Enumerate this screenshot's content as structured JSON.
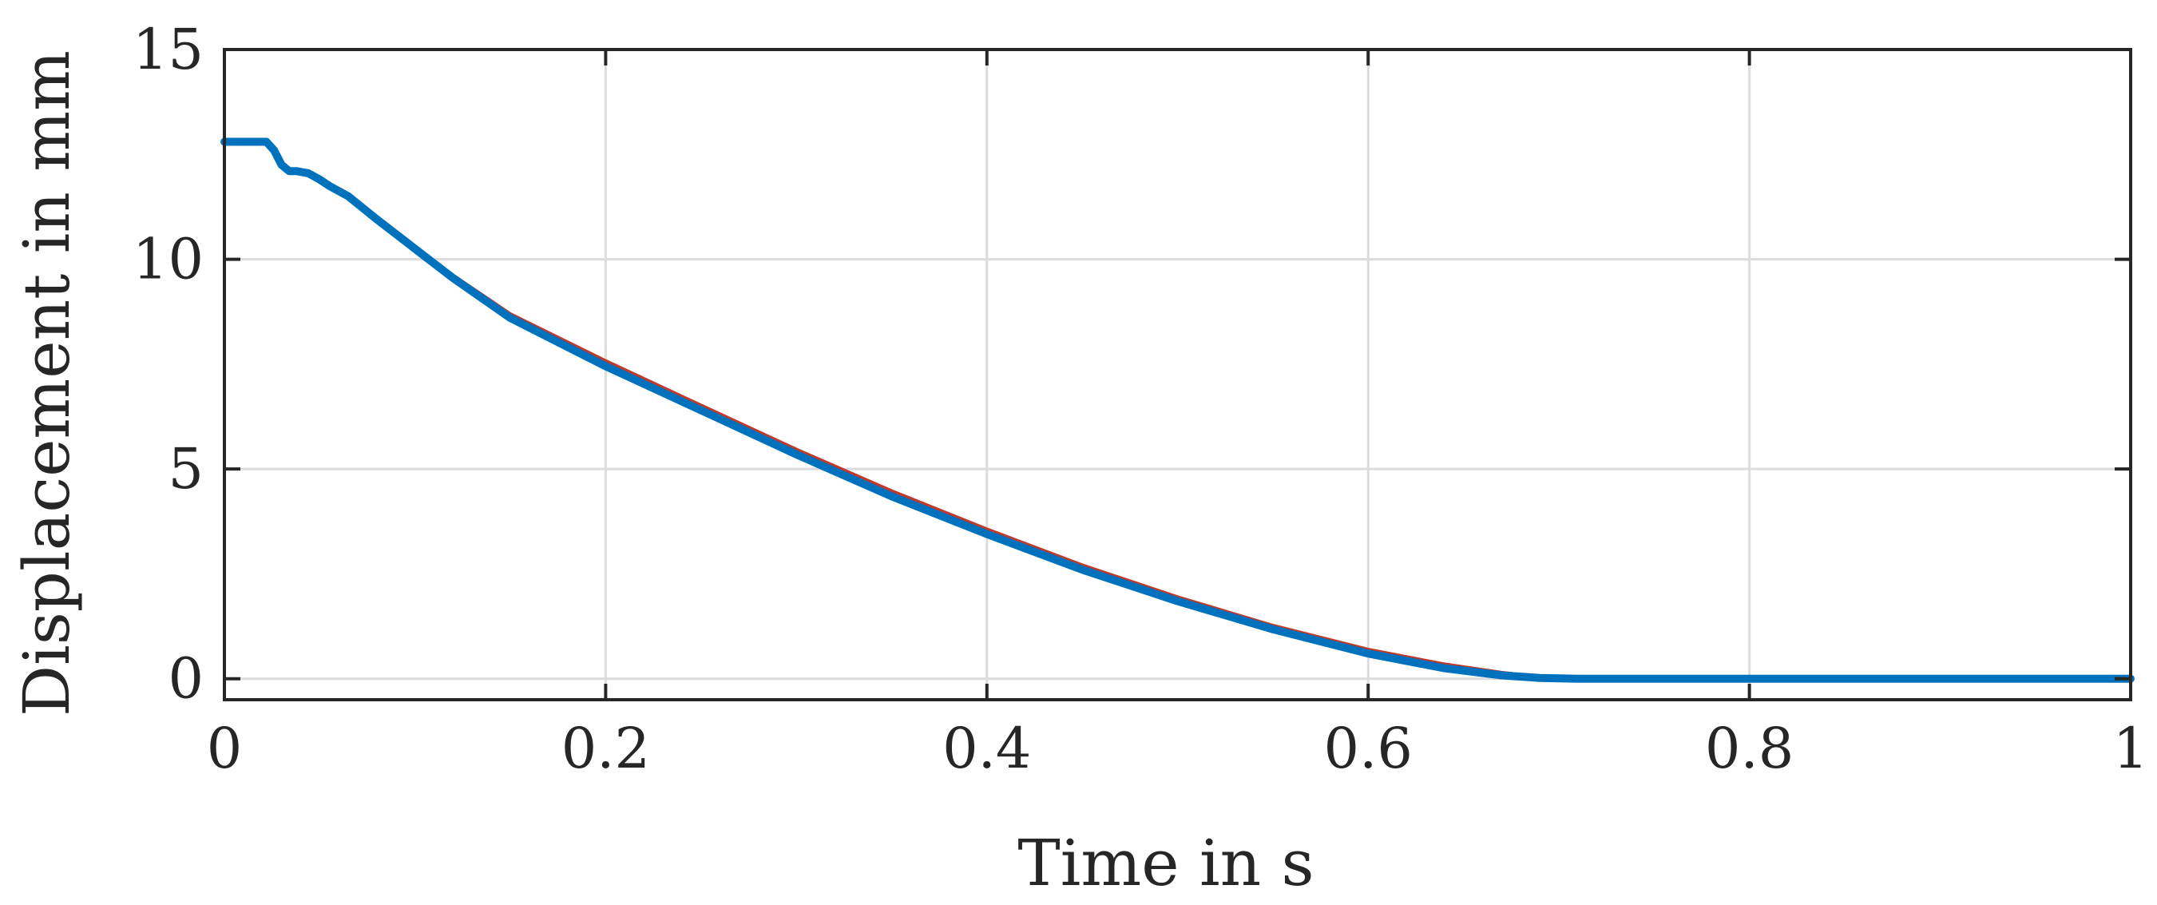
{
  "chart_data": {
    "type": "line",
    "title": "",
    "xlabel": "Time in s",
    "ylabel": "Displacement in mm",
    "xlim": [
      0,
      1
    ],
    "ylim": [
      -0.5,
      15
    ],
    "xticks": [
      0,
      0.2,
      0.4,
      0.6,
      0.8,
      1
    ],
    "xtick_labels": [
      "0",
      "0.2",
      "0.4",
      "0.6",
      "0.8",
      "1"
    ],
    "yticks": [
      0,
      5,
      10,
      15
    ],
    "ytick_labels": [
      "0",
      "5",
      "10",
      "15"
    ],
    "grid": true,
    "legend": "none",
    "colors": {
      "grid": "#dcdcdc",
      "axes": "#262626",
      "text": "#262626"
    },
    "series": [
      {
        "color": "#c0392b",
        "line_width": 4,
        "x": [
          0,
          0.022,
          0.026,
          0.03,
          0.034,
          0.038,
          0.044,
          0.05,
          0.055,
          0.065,
          0.08,
          0.1,
          0.12,
          0.15,
          0.2,
          0.25,
          0.3,
          0.35,
          0.4,
          0.45,
          0.5,
          0.55,
          0.6,
          0.64,
          0.67,
          0.69,
          0.71,
          0.75,
          0.8,
          0.9,
          1.0
        ],
        "y": [
          12.8,
          12.8,
          12.6,
          12.25,
          12.1,
          12.1,
          12.05,
          11.9,
          11.75,
          11.5,
          10.98,
          10.3,
          9.62,
          8.7,
          7.58,
          6.52,
          5.47,
          4.48,
          3.57,
          2.71,
          1.95,
          1.27,
          0.7,
          0.35,
          0.15,
          0.05,
          0.02,
          0.0,
          0.0,
          0.0,
          0.0
        ]
      },
      {
        "color": "#0072bd",
        "line_width": 10,
        "x": [
          0,
          0.022,
          0.026,
          0.03,
          0.034,
          0.038,
          0.044,
          0.05,
          0.055,
          0.065,
          0.08,
          0.1,
          0.12,
          0.15,
          0.2,
          0.25,
          0.3,
          0.35,
          0.4,
          0.45,
          0.5,
          0.55,
          0.6,
          0.64,
          0.67,
          0.69,
          0.71,
          0.75,
          0.8,
          0.9,
          1.0
        ],
        "y": [
          12.8,
          12.8,
          12.6,
          12.25,
          12.1,
          12.1,
          12.05,
          11.9,
          11.75,
          11.5,
          10.95,
          10.25,
          9.55,
          8.6,
          7.45,
          6.4,
          5.35,
          4.35,
          3.45,
          2.6,
          1.85,
          1.18,
          0.6,
          0.25,
          0.08,
          0.02,
          0.0,
          0.0,
          0.0,
          0.0,
          0.0
        ]
      }
    ]
  }
}
